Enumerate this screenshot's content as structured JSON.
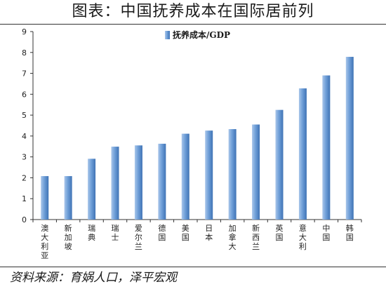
{
  "header": {
    "title": "图表：中国抚养成本在国际居前列"
  },
  "footer": {
    "source": "资料来源：育娲人口，泽平宏观"
  },
  "colors": {
    "bar_top": "#a9c6ea",
    "bar_mid": "#6f9fd8",
    "bar_dark": "#3f73b5",
    "axis": "#333333"
  },
  "chart_data": {
    "type": "bar",
    "title": "",
    "xlabel": "",
    "ylabel": "",
    "ylim": [
      0,
      9
    ],
    "yticks": [
      0,
      1,
      2,
      3,
      4,
      5,
      6,
      7,
      8,
      9
    ],
    "grid": false,
    "legend_position": "top-center",
    "categories": [
      "澳大利亚",
      "新加坡",
      "瑞典",
      "瑞士",
      "爱尔兰",
      "德国",
      "美国",
      "日本",
      "加拿大",
      "新西兰",
      "英国",
      "意大利",
      "中国",
      "韩国"
    ],
    "series": [
      {
        "name": "抚养成本/GDP",
        "values": [
          2.08,
          2.08,
          2.91,
          3.49,
          3.55,
          3.63,
          4.11,
          4.26,
          4.33,
          4.55,
          5.25,
          6.28,
          6.9,
          7.79
        ]
      }
    ]
  }
}
